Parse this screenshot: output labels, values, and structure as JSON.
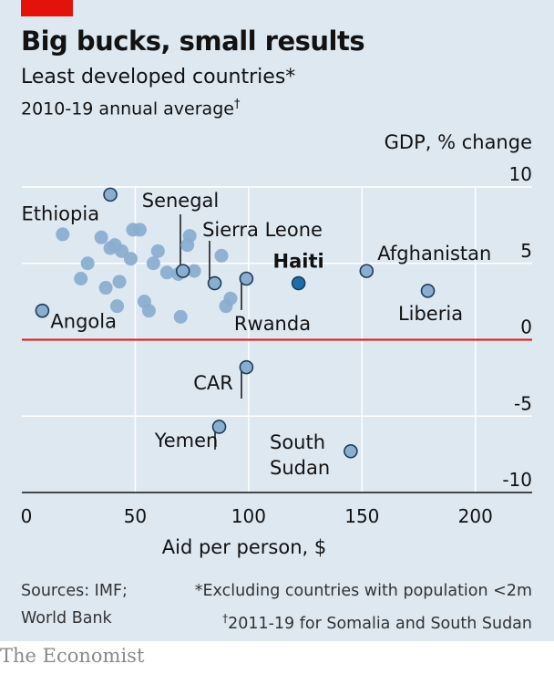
{
  "title": "Big bucks, small results",
  "subtitle": "Least developed countries*",
  "period": "2010-19 annual average",
  "period_mark": "†",
  "sources": [
    "Sources: IMF;",
    "World Bank"
  ],
  "footnote_1": "*Excluding countries with population <2m",
  "footnote_2_mark": "†",
  "footnote_2": "2011-19 for Somalia and South Sudan",
  "brand": "The Economist",
  "colors": {
    "panel": "#dde8f1",
    "point_fill": "#8aaed0",
    "point_stroke": "#1f3d57",
    "highlight_fill": "#1b6fa8",
    "zero_line": "#e3120b",
    "grid": "#ffffff",
    "brand_red": "#e3120b"
  },
  "chart_data": {
    "type": "scatter",
    "xlabel": "Aid per person, $",
    "ylabel": "GDP, % change",
    "xlim": [
      0,
      225
    ],
    "ylim": [
      -10,
      10
    ],
    "x_ticks": [
      0,
      50,
      100,
      150,
      200
    ],
    "y_ticks": [
      10,
      5,
      0,
      -5,
      -10
    ],
    "grid": true,
    "labeled_points": [
      {
        "label": "Ethiopia",
        "x": 39,
        "y": 9.5
      },
      {
        "label": "Senegal",
        "x": 71,
        "y": 4.5
      },
      {
        "label": "Sierra Leone",
        "x": 85,
        "y": 3.7
      },
      {
        "label": "Rwanda",
        "x": 99,
        "y": 4.0
      },
      {
        "label": "Haiti",
        "x": 122,
        "y": 3.7,
        "highlight": true
      },
      {
        "label": "Afghanistan",
        "x": 152,
        "y": 4.5
      },
      {
        "label": "Liberia",
        "x": 179,
        "y": 3.2
      },
      {
        "label": "Angola",
        "x": 9,
        "y": 1.9
      },
      {
        "label": "CAR",
        "x": 99,
        "y": -1.8
      },
      {
        "label": "Yemen",
        "x": 87,
        "y": -5.7
      },
      {
        "label": "South Sudan",
        "x": 145,
        "y": -7.3
      }
    ],
    "other_points": [
      {
        "x": 18,
        "y": 6.9
      },
      {
        "x": 26,
        "y": 4.0
      },
      {
        "x": 29,
        "y": 5.0
      },
      {
        "x": 35,
        "y": 6.7
      },
      {
        "x": 37,
        "y": 3.4
      },
      {
        "x": 39,
        "y": 6.0
      },
      {
        "x": 41,
        "y": 6.2
      },
      {
        "x": 42,
        "y": 2.2
      },
      {
        "x": 43,
        "y": 3.8
      },
      {
        "x": 44,
        "y": 5.8
      },
      {
        "x": 48,
        "y": 5.3
      },
      {
        "x": 49,
        "y": 7.2
      },
      {
        "x": 52,
        "y": 7.2
      },
      {
        "x": 54,
        "y": 2.5
      },
      {
        "x": 56,
        "y": 1.9
      },
      {
        "x": 58,
        "y": 5.0
      },
      {
        "x": 60,
        "y": 5.8
      },
      {
        "x": 64,
        "y": 4.4
      },
      {
        "x": 69,
        "y": 4.3
      },
      {
        "x": 70,
        "y": 1.5
      },
      {
        "x": 73,
        "y": 6.2
      },
      {
        "x": 74,
        "y": 6.8
      },
      {
        "x": 76,
        "y": 4.5
      },
      {
        "x": 88,
        "y": 5.5
      },
      {
        "x": 90,
        "y": 2.2
      },
      {
        "x": 92,
        "y": 2.7
      }
    ]
  }
}
